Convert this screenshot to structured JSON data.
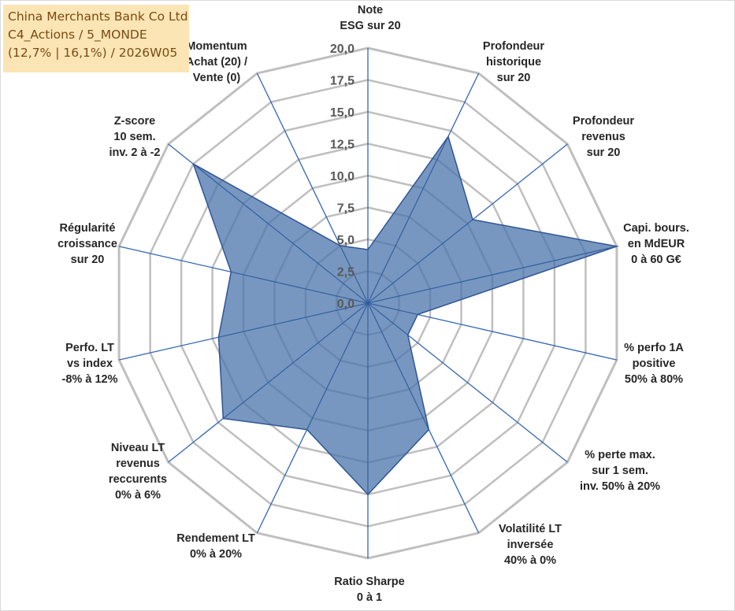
{
  "header": {
    "line1": "China Merchants Bank Co Ltd",
    "line2": "C4_Actions / 5_MONDE",
    "line3": "(12,7% | 16,1%) / 2026W05"
  },
  "chart_data": {
    "type": "radar",
    "title": "China Merchants Bank Co Ltd",
    "rlim": [
      0,
      20
    ],
    "ticks": [
      "0,0",
      "2,5",
      "5,0",
      "7,5",
      "10,0",
      "12,5",
      "15,0",
      "17,5",
      "20,0"
    ],
    "tick_values": [
      0,
      2.5,
      5,
      7.5,
      10,
      12.5,
      15,
      17.5,
      20
    ],
    "grid": true,
    "axes": [
      {
        "lines": [
          "Note",
          "ESG sur 20"
        ],
        "value": 4.2
      },
      {
        "lines": [
          "Profondeur",
          "historique",
          "sur 20"
        ],
        "value": 14.5
      },
      {
        "lines": [
          "Profondeur",
          "revenus",
          "sur 20"
        ],
        "value": 10.5
      },
      {
        "lines": [
          "Capi. bours.",
          "en MdEUR",
          "0 à 60 G€"
        ],
        "value": 20.0
      },
      {
        "lines": [
          "% perfo 1A",
          "positive",
          "50% à 80%"
        ],
        "value": 4.0
      },
      {
        "lines": [
          "% perte max.",
          "sur 1 sem.",
          "inv. 50% à 20%"
        ],
        "value": 4.0
      },
      {
        "lines": [
          "Volatilité LT",
          "inversée",
          "40% à 0%"
        ],
        "value": 11.0
      },
      {
        "lines": [
          "Ratio Sharpe",
          "0 à 1"
        ],
        "value": 15.0
      },
      {
        "lines": [
          "Rendement LT",
          "0% à 20%"
        ],
        "value": 11.0
      },
      {
        "lines": [
          "Niveau LT",
          "revenus",
          "reccurents",
          "0% à 6%"
        ],
        "value": 14.5
      },
      {
        "lines": [
          "Perfo. LT",
          "vs index",
          "-8% à 12%"
        ],
        "value": 12.0
      },
      {
        "lines": [
          "Régularité",
          "croissance",
          "sur 20"
        ],
        "value": 11.0
      },
      {
        "lines": [
          "Z-score",
          "10 sem.",
          "inv. 2 à -2"
        ],
        "value": 17.5
      },
      {
        "lines": [
          "Momentum",
          "Achat (20) /",
          "Vente (0)"
        ],
        "value": 5.0
      }
    ],
    "colors": {
      "fill": "#4a74ab",
      "fill_opacity": 0.75,
      "stroke": "#2f5596",
      "spoke": "#3366b3",
      "grid": "#bfbfbf"
    }
  }
}
